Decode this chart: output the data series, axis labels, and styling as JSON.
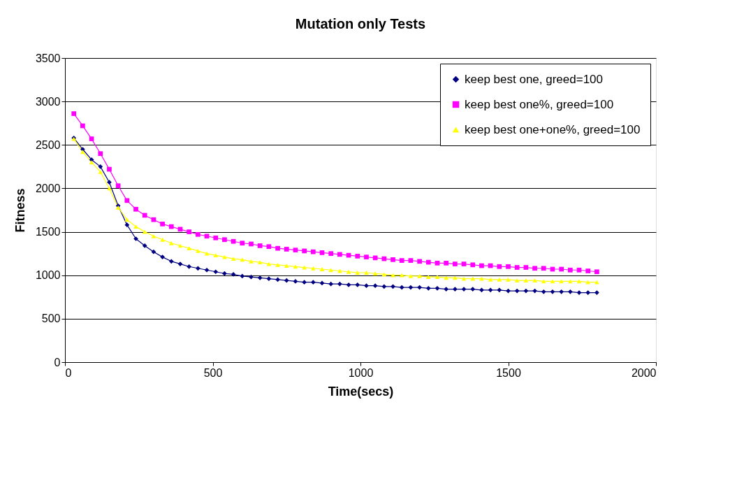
{
  "chart_data": {
    "type": "line",
    "title": "Mutation only Tests",
    "xlabel": "Time(secs)",
    "ylabel": "Fitness",
    "x": [
      30,
      60,
      90,
      120,
      150,
      180,
      210,
      240,
      270,
      300,
      330,
      360,
      390,
      420,
      450,
      480,
      510,
      540,
      570,
      600,
      630,
      660,
      690,
      720,
      750,
      780,
      810,
      840,
      870,
      900,
      930,
      960,
      990,
      1020,
      1050,
      1080,
      1110,
      1140,
      1170,
      1200,
      1230,
      1260,
      1290,
      1320,
      1350,
      1380,
      1410,
      1440,
      1470,
      1500,
      1530,
      1560,
      1590,
      1620,
      1650,
      1680,
      1710,
      1740,
      1770,
      1800
    ],
    "series": [
      {
        "name": "keep best one, greed=100",
        "color": "#000080",
        "marker": "diamond",
        "values": [
          2580,
          2450,
          2330,
          2250,
          2070,
          1800,
          1580,
          1420,
          1340,
          1270,
          1210,
          1160,
          1130,
          1100,
          1080,
          1060,
          1040,
          1020,
          1010,
          990,
          980,
          970,
          960,
          950,
          940,
          930,
          920,
          920,
          910,
          900,
          900,
          890,
          890,
          880,
          880,
          870,
          870,
          860,
          860,
          860,
          850,
          850,
          840,
          840,
          840,
          840,
          830,
          830,
          830,
          820,
          820,
          820,
          820,
          810,
          810,
          810,
          810,
          800,
          800,
          800
        ]
      },
      {
        "name": "keep best one%, greed=100",
        "color": "#ff00ff",
        "marker": "square",
        "values": [
          2860,
          2720,
          2570,
          2400,
          2220,
          2030,
          1860,
          1760,
          1690,
          1640,
          1590,
          1560,
          1530,
          1500,
          1470,
          1450,
          1430,
          1410,
          1390,
          1370,
          1360,
          1340,
          1330,
          1310,
          1300,
          1290,
          1280,
          1270,
          1260,
          1250,
          1240,
          1230,
          1220,
          1210,
          1200,
          1190,
          1180,
          1170,
          1170,
          1160,
          1150,
          1140,
          1140,
          1130,
          1130,
          1120,
          1110,
          1110,
          1100,
          1100,
          1090,
          1090,
          1080,
          1080,
          1070,
          1070,
          1060,
          1060,
          1050,
          1040
        ]
      },
      {
        "name": "keep best one+one%, greed=100",
        "color": "#ffff00",
        "marker": "triangle",
        "values": [
          2570,
          2420,
          2300,
          2190,
          2000,
          1780,
          1640,
          1560,
          1500,
          1450,
          1410,
          1370,
          1340,
          1310,
          1280,
          1250,
          1230,
          1210,
          1190,
          1180,
          1160,
          1150,
          1130,
          1120,
          1110,
          1100,
          1090,
          1080,
          1070,
          1060,
          1050,
          1040,
          1030,
          1030,
          1020,
          1010,
          1000,
          1000,
          990,
          990,
          980,
          980,
          970,
          970,
          960,
          960,
          960,
          950,
          950,
          950,
          940,
          940,
          940,
          930,
          930,
          930,
          930,
          930,
          920,
          920
        ]
      }
    ],
    "xlim": [
      0,
      2000
    ],
    "xticks": [
      0,
      500,
      1000,
      1500,
      2000
    ],
    "ylim": [
      0,
      3500
    ],
    "yticks": [
      0,
      500,
      1000,
      1500,
      2000,
      2500,
      3000,
      3500
    ],
    "grid": "y",
    "legend": "top right",
    "line_style": "solid"
  }
}
